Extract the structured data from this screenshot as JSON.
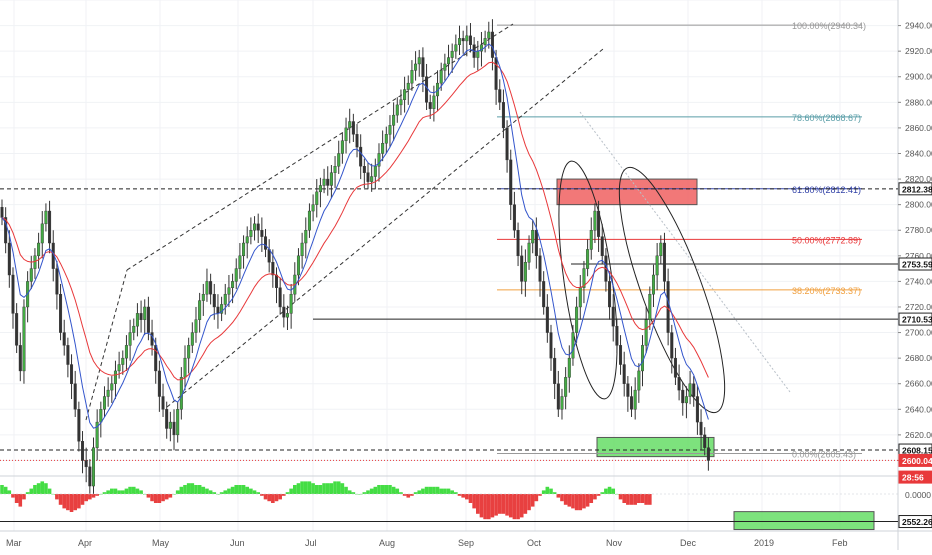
{
  "chart_data": {
    "type": "candlestick",
    "symbol_period": "daily",
    "y_axis": {
      "range": [
        2530,
        2960
      ],
      "ticks": [
        2540,
        2560,
        2580,
        2600,
        2620,
        2640,
        2660,
        2680,
        2700,
        2720,
        2740,
        2760,
        2780,
        2800,
        2820,
        2840,
        2860,
        2880,
        2900,
        2920,
        2940,
        2960
      ],
      "tick_labels": [
        "2540.00",
        "2560.00",
        "2580.00",
        "2600.00",
        "2620.00",
        "2640.00",
        "2660.00",
        "2680.00",
        "2700.00",
        "2720.00",
        "2740.00",
        "2760.00",
        "2780.00",
        "2800.00",
        "2820.00",
        "2840.00",
        "2860.00",
        "2880.00",
        "2900.00",
        "2920.00",
        "2940.00",
        "2960.00"
      ]
    },
    "x_axis": {
      "labels": [
        "Mar",
        "Apr",
        "May",
        "Jun",
        "Jul",
        "Aug",
        "Sep",
        "Oct",
        "Nov",
        "Dec",
        "2019",
        "Feb"
      ]
    },
    "price_badges": [
      {
        "label": "2812.38",
        "value": 2812.38,
        "style": "dashed-line"
      },
      {
        "label": "2753.59",
        "value": 2753.59,
        "style": "solid-line"
      },
      {
        "label": "2710.53",
        "value": 2710.53,
        "style": "solid-line"
      },
      {
        "label": "2608.15",
        "value": 2608.15,
        "style": "dashed-line"
      },
      {
        "label": "2600.04",
        "value": 2600.04,
        "style": "last-price",
        "color": "#e8383a"
      },
      {
        "label": "28:56",
        "value": 2587,
        "style": "countdown",
        "color": "#e8383a"
      },
      {
        "label": "2552.26",
        "value": 2552.26,
        "style": "solid-line"
      }
    ],
    "fibonacci": [
      {
        "label": "100.00%(2940.34)",
        "value": 2940.34,
        "color": "#999999"
      },
      {
        "label": "78.60%(2868.67)",
        "value": 2868.67,
        "color": "#5a9ea8"
      },
      {
        "label": "61.80%(2812.41)",
        "value": 2812.41,
        "color": "#3343a8"
      },
      {
        "label": "50.00%(2772.89)",
        "value": 2772.89,
        "color": "#e8383a"
      },
      {
        "label": "38.20%(2733.37)",
        "value": 2733.37,
        "color": "#f0a040"
      },
      {
        "label": "0.00%(2605.43)",
        "value": 2605.43,
        "color": "#999999"
      }
    ],
    "zones": [
      {
        "name": "resistance",
        "value_top": 2820,
        "value_bottom": 2800,
        "color": "#f06060"
      },
      {
        "name": "support",
        "value_top": 2618,
        "value_bottom": 2603,
        "color": "#66dd66"
      },
      {
        "name": "target",
        "value_top": 2560,
        "value_bottom": 2546,
        "color": "#66dd66"
      }
    ],
    "closes": [
      2790,
      2770,
      2745,
      2715,
      2690,
      2670,
      2720,
      2740,
      2750,
      2760,
      2770,
      2785,
      2795,
      2770,
      2750,
      2730,
      2700,
      2690,
      2675,
      2660,
      2640,
      2615,
      2600,
      2595,
      2580,
      2610,
      2630,
      2640,
      2650,
      2655,
      2660,
      2670,
      2675,
      2680,
      2690,
      2700,
      2705,
      2715,
      2710,
      2720,
      2700,
      2690,
      2670,
      2650,
      2640,
      2625,
      2630,
      2620,
      2640,
      2665,
      2680,
      2690,
      2700,
      2710,
      2725,
      2730,
      2740,
      2730,
      2720,
      2715,
      2722,
      2730,
      2735,
      2740,
      2750,
      2760,
      2770,
      2775,
      2780,
      2785,
      2780,
      2775,
      2765,
      2755,
      2745,
      2735,
      2720,
      2712,
      2715,
      2730,
      2745,
      2760,
      2770,
      2780,
      2795,
      2800,
      2810,
      2815,
      2820,
      2815,
      2825,
      2830,
      2840,
      2850,
      2860,
      2865,
      2855,
      2845,
      2830,
      2825,
      2818,
      2822,
      2830,
      2840,
      2848,
      2855,
      2862,
      2870,
      2878,
      2882,
      2890,
      2895,
      2905,
      2910,
      2915,
      2900,
      2880,
      2875,
      2885,
      2895,
      2905,
      2910,
      2915,
      2920,
      2925,
      2930,
      2928,
      2932,
      2925,
      2915,
      2920,
      2925,
      2930,
      2935,
      2915,
      2890,
      2880,
      2860,
      2835,
      2800,
      2780,
      2760,
      2740,
      2755,
      2770,
      2780,
      2760,
      2740,
      2720,
      2700,
      2680,
      2660,
      2640,
      2650,
      2665,
      2680,
      2700,
      2720,
      2735,
      2750,
      2765,
      2780,
      2795,
      2775,
      2760,
      2740,
      2720,
      2705,
      2690,
      2675,
      2660,
      2650,
      2640,
      2655,
      2670,
      2690,
      2710,
      2730,
      2745,
      2760,
      2770,
      2740,
      2700,
      2680,
      2665,
      2655,
      2645,
      2650,
      2660,
      2650,
      2630,
      2620,
      2610,
      2600
    ],
    "oscillator": {
      "zero_label": "0.0000",
      "values": [
        0.5,
        0.4,
        0.2,
        -0.2,
        -0.5,
        -0.7,
        -0.3,
        0.1,
        0.3,
        0.5,
        0.6,
        0.7,
        0.6,
        0.3,
        0.0,
        -0.3,
        -0.6,
        -0.8,
        -0.9,
        -1.0,
        -0.9,
        -0.8,
        -0.6,
        -0.4,
        -0.3,
        -0.2,
        -0.1,
        0.0,
        0.1,
        0.2,
        0.3,
        0.3,
        0.2,
        0.2,
        0.3,
        0.4,
        0.4,
        0.3,
        0.2,
        0.0,
        -0.2,
        -0.4,
        -0.5,
        -0.5,
        -0.4,
        -0.3,
        -0.2,
        0.0,
        0.2,
        0.4,
        0.5,
        0.6,
        0.6,
        0.5,
        0.5,
        0.4,
        0.3,
        0.2,
        0.1,
        0.0,
        0.1,
        0.2,
        0.3,
        0.4,
        0.5,
        0.5,
        0.5,
        0.4,
        0.3,
        0.2,
        0.1,
        -0.1,
        -0.3,
        -0.4,
        -0.5,
        -0.4,
        -0.3,
        -0.1,
        0.1,
        0.3,
        0.5,
        0.6,
        0.7,
        0.7,
        0.7,
        0.6,
        0.5,
        0.5,
        0.6,
        0.6,
        0.6,
        0.7,
        0.7,
        0.6,
        0.4,
        0.2,
        0.1,
        0.0,
        0.0,
        0.1,
        0.2,
        0.3,
        0.4,
        0.5,
        0.5,
        0.5,
        0.5,
        0.4,
        0.3,
        0.1,
        -0.1,
        -0.2,
        -0.1,
        0.1,
        0.2,
        0.3,
        0.4,
        0.4,
        0.4,
        0.4,
        0.3,
        0.3,
        0.3,
        0.2,
        0.1,
        -0.1,
        -0.2,
        -0.3,
        -0.5,
        -0.8,
        -1.1,
        -1.3,
        -1.4,
        -1.4,
        -1.3,
        -1.2,
        -1.1,
        -1.1,
        -1.2,
        -1.3,
        -1.4,
        -1.4,
        -1.3,
        -1.1,
        -0.9,
        -0.7,
        -0.4,
        -0.1,
        0.2,
        0.4,
        0.3,
        0.1,
        -0.2,
        -0.4,
        -0.6,
        -0.7,
        -0.8,
        -0.9,
        -0.9,
        -0.8,
        -0.7,
        -0.5,
        -0.3,
        -0.1,
        0.1,
        0.3,
        0.4,
        0.3,
        0.0,
        -0.3,
        -0.5,
        -0.6,
        -0.6,
        -0.6,
        -0.5,
        -0.5,
        -0.6,
        -0.6
      ]
    },
    "colors": {
      "up": "#44aa44",
      "down": "#333333",
      "ema_fast": "#3355cc",
      "ema_slow": "#e8383a",
      "osc_pos": "#44dd44",
      "osc_neg": "#e84040"
    }
  }
}
